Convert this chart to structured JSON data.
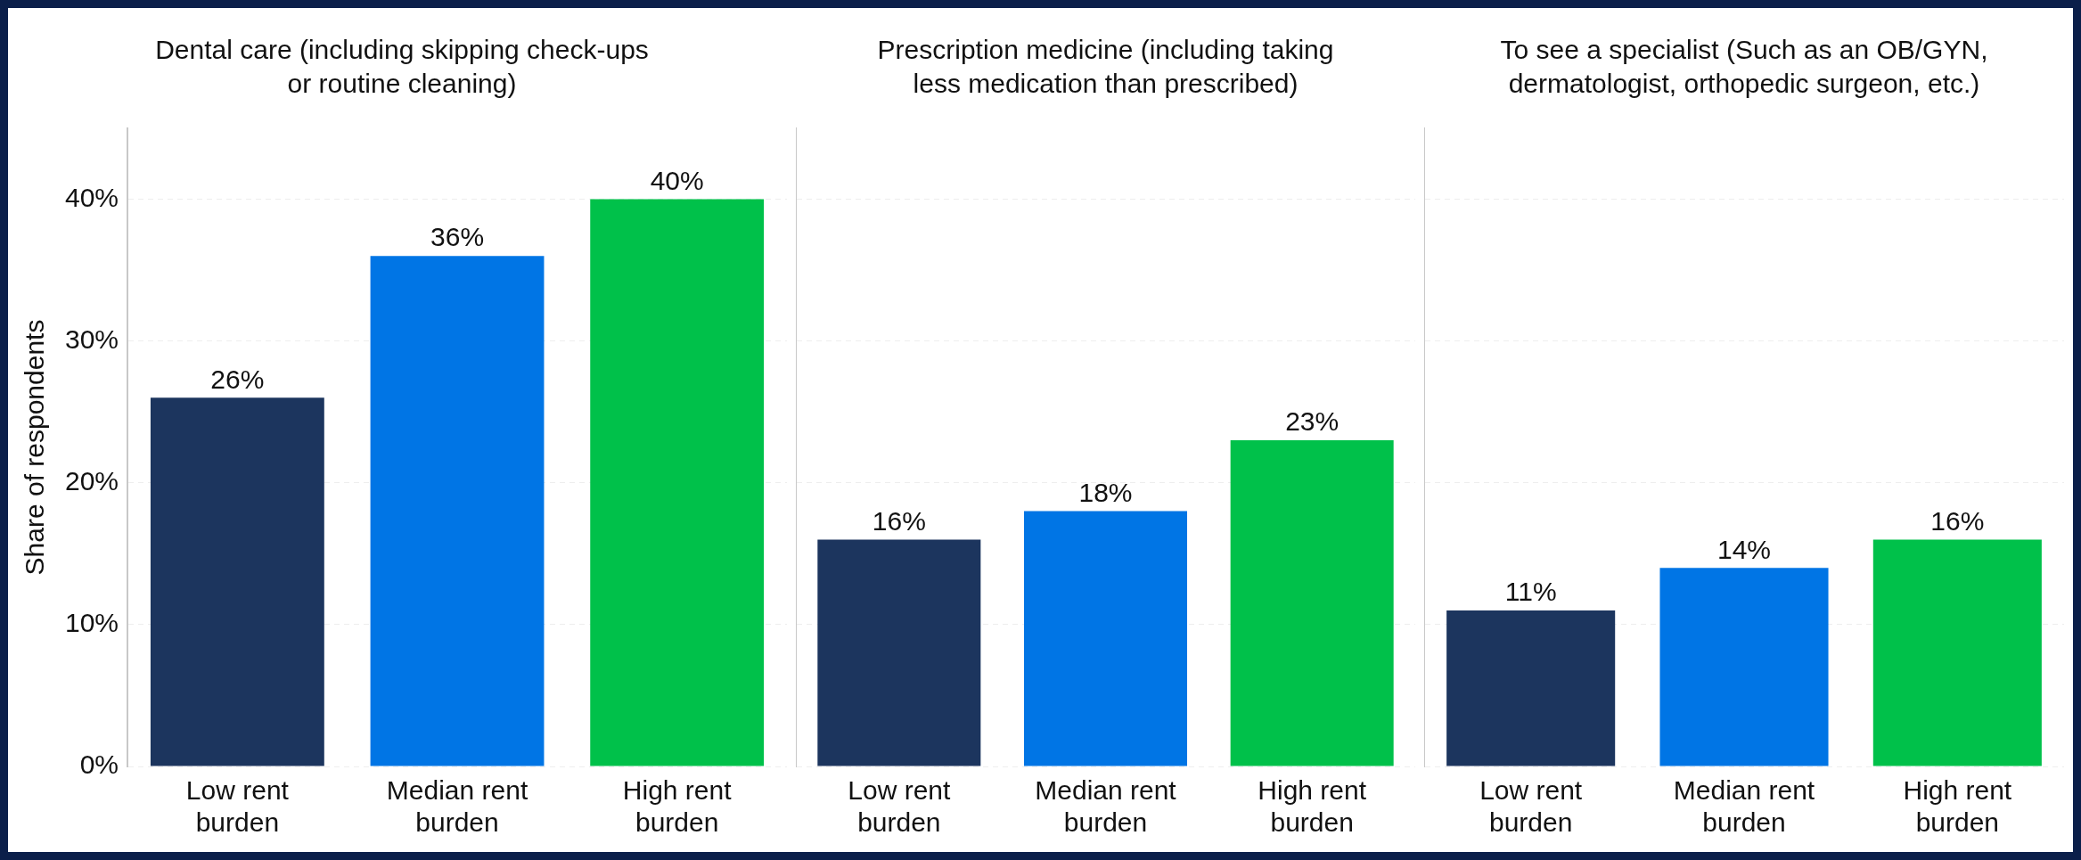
{
  "chart_data": [
    {
      "type": "bar",
      "title": "Dental care (including skipping check-ups or routine cleaning)",
      "ylabel": "Share of respondents",
      "categories": [
        "Low rent burden",
        "Median rent burden",
        "High rent burden"
      ],
      "values": [
        26,
        36,
        40
      ],
      "colors": [
        "#1c355e",
        "#0075e5",
        "#00c14a"
      ],
      "ylim": [
        0,
        45
      ],
      "yticks": [
        {
          "value": 0,
          "label": "0%"
        },
        {
          "value": 10,
          "label": "10%"
        },
        {
          "value": 20,
          "label": "20%"
        },
        {
          "value": 30,
          "label": "30%"
        },
        {
          "value": 40,
          "label": "40%"
        }
      ],
      "value_labels": [
        "26%",
        "36%",
        "40%"
      ],
      "grid": "y",
      "legend": false
    },
    {
      "type": "bar",
      "title": "Prescription medicine (including taking less medication than prescribed)",
      "categories": [
        "Low rent burden",
        "Median rent burden",
        "High rent burden"
      ],
      "values": [
        16,
        18,
        23
      ],
      "colors": [
        "#1c355e",
        "#0075e5",
        "#00c14a"
      ],
      "ylim": [
        0,
        45
      ],
      "yticks": [
        0,
        10,
        20,
        30,
        40
      ],
      "value_labels": [
        "16%",
        "18%",
        "23%"
      ],
      "grid": "y",
      "legend": false,
      "tick_labels": "x"
    },
    {
      "type": "bar",
      "title": "To see a specialist (Such as an OB/GYN, dermatologist, orthopedic surgeon, etc.)",
      "categories": [
        "Low rent burden",
        "Median rent burden",
        "High rent burden"
      ],
      "values": [
        11,
        14,
        16
      ],
      "colors": [
        "#1c355e",
        "#0075e5",
        "#00c14a"
      ],
      "ylim": [
        0,
        45
      ],
      "yticks": [
        0,
        10,
        20,
        30,
        40
      ],
      "value_labels": [
        "11%",
        "14%",
        "16%"
      ],
      "grid": "y",
      "legend": false,
      "tick_labels": "x"
    }
  ]
}
